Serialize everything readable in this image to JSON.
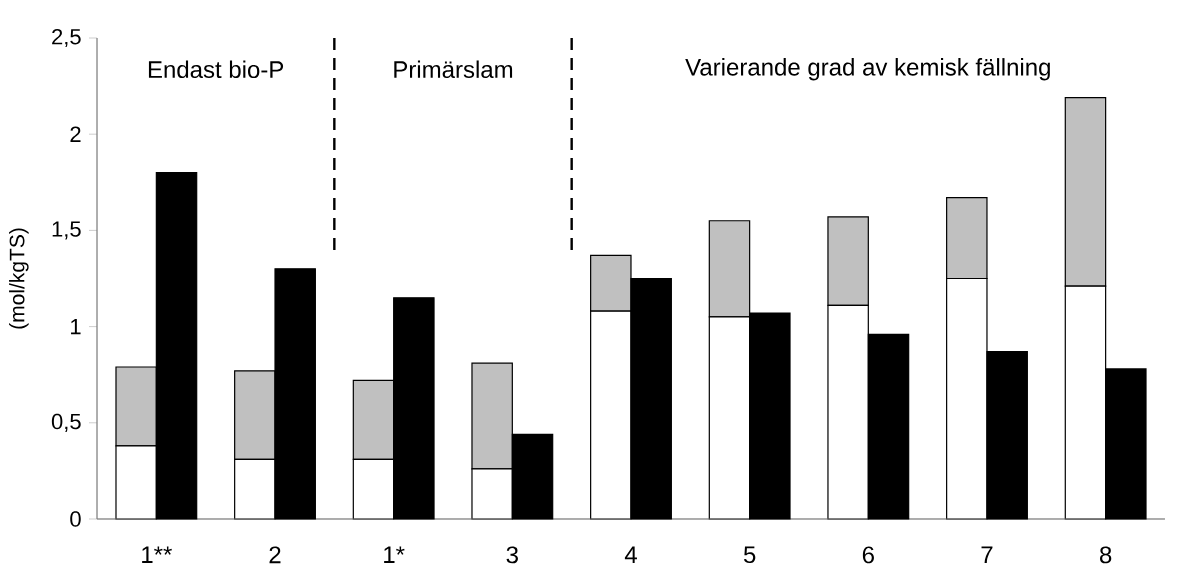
{
  "chart_data": [
    {
      "type": "bar",
      "stacked": true,
      "ylabel": "(mol/kgTS)",
      "categories": [
        "1**",
        "2",
        "1*",
        "3",
        "4",
        "5",
        "6",
        "7",
        "8"
      ],
      "series": [
        {
          "color": "#ffffff",
          "values": [
            0.38,
            0.31,
            0.31,
            0.26,
            1.08,
            1.05,
            1.11,
            1.25,
            1.21
          ]
        },
        {
          "color": "#c0c0c0",
          "values": [
            0.41,
            0.46,
            0.41,
            0.55,
            0.29,
            0.5,
            0.46,
            0.42,
            0.98
          ]
        }
      ],
      "ylim": [
        0,
        2.5
      ],
      "yticks": [
        0,
        {
          "value": 0.5,
          "label": "0,5"
        },
        1,
        {
          "value": 1.5,
          "label": "1,5"
        },
        2,
        {
          "value": 2.5,
          "label": "2,5"
        }
      ],
      "annotations": [
        "Endast bio-P",
        "Primärslam",
        "Varierande grad av kemisk fällning"
      ]
    },
    {
      "type": "bar",
      "tick_labels": false,
      "categories": [
        null,
        null,
        null,
        null,
        null,
        null,
        null,
        null,
        null
      ],
      "series": [
        {
          "color": "#000000",
          "values": [
            1.8,
            1.3,
            1.15,
            0.44,
            1.25,
            1.07,
            0.96,
            0.87,
            0.78
          ]
        }
      ],
      "ylim": [
        0,
        2.5
      ]
    }
  ]
}
